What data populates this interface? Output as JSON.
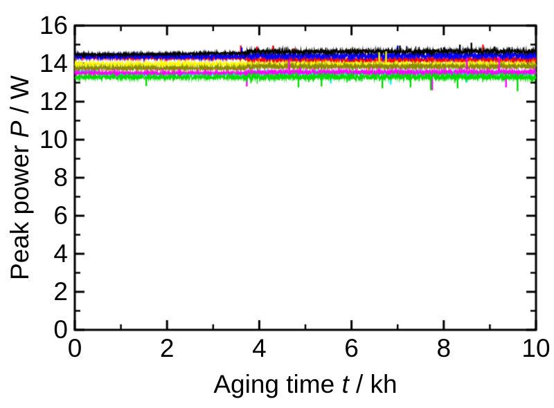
{
  "figure": {
    "background": "#ffffff",
    "frame_color": "#000000",
    "xlabel_parts": {
      "prefix": "Aging time ",
      "symbol": "t",
      "suffix": " / kh"
    },
    "ylabel_parts": {
      "prefix": "Peak power ",
      "symbol": "P",
      "suffix": " / W"
    }
  },
  "chart_data": {
    "type": "line",
    "title": "",
    "xlabel": "Aging time t / kh",
    "ylabel": "Peak power P / W",
    "xlim": [
      0,
      10
    ],
    "ylim": [
      0,
      16
    ],
    "x_major_ticks": [
      0,
      2,
      4,
      6,
      8,
      10
    ],
    "x_tick_labels": [
      "0",
      "2",
      "4",
      "6",
      "8",
      "10"
    ],
    "x_minor_ticks": [
      1,
      3,
      5,
      7,
      9
    ],
    "y_major_ticks": [
      0,
      2,
      4,
      6,
      8,
      10,
      12,
      14,
      16
    ],
    "y_tick_labels": [
      "0",
      "2",
      "4",
      "6",
      "8",
      "10",
      "12",
      "14",
      "16"
    ],
    "y_minor_ticks": [
      1,
      3,
      5,
      7,
      9,
      11,
      13,
      15
    ],
    "grid": false,
    "legend": "none",
    "ticks": "inside-all-four-sides",
    "noise_step_t": 3.7,
    "series": [
      {
        "name": "red",
        "color": "#FF0000",
        "base": [
          [
            0,
            14.35
          ],
          [
            3.7,
            14.3
          ],
          [
            3.75,
            14.2
          ],
          [
            10,
            14.2
          ]
        ],
        "amp_before": 0.08,
        "amp_after": 0.14,
        "tail": {
          "prob": 0.03,
          "dir": 1,
          "mult": 1.8
        },
        "spikes": [
          [
            3.6,
            14.95
          ],
          [
            3.95,
            14.9
          ],
          [
            4.3,
            14.95
          ],
          [
            4.75,
            14.8
          ],
          [
            6.3,
            14.75
          ],
          [
            8.85,
            15.0
          ],
          [
            9.3,
            14.7
          ]
        ]
      },
      {
        "name": "cyan",
        "color": "#00FFFF",
        "base": [
          [
            0,
            13.6
          ],
          [
            0.45,
            13.6
          ],
          [
            0.55,
            13.44
          ],
          [
            3.7,
            13.44
          ],
          [
            3.75,
            13.5
          ],
          [
            10,
            13.5
          ]
        ],
        "amp_before": 0.04,
        "amp_after": 0.09,
        "tail": {
          "prob": 0.02,
          "dir": -1,
          "mult": 1.6
        },
        "spikes": [
          [
            5.55,
            12.95
          ],
          [
            6.85,
            12.9
          ],
          [
            8.5,
            13.0
          ]
        ]
      },
      {
        "name": "blue",
        "color": "#0000FF",
        "base": [
          [
            0,
            14.38
          ],
          [
            3.7,
            14.38
          ],
          [
            3.75,
            14.4
          ],
          [
            10,
            14.42
          ]
        ],
        "amp_before": 0.11,
        "amp_after": 0.16,
        "tail": {
          "prob": 0.02,
          "dir": 1,
          "mult": 1.6
        },
        "spikes": [
          [
            3.62,
            14.85
          ],
          [
            7.0,
            14.95
          ]
        ]
      },
      {
        "name": "black",
        "color": "#000000",
        "base": [
          [
            0,
            14.47
          ],
          [
            1.5,
            14.49
          ],
          [
            3,
            14.54
          ],
          [
            3.7,
            14.56
          ],
          [
            3.75,
            14.62
          ],
          [
            10,
            14.65
          ]
        ],
        "amp_before": 0.06,
        "amp_after": 0.11,
        "tail": {
          "prob": 0.04,
          "dir": 1,
          "mult": 2.0
        },
        "spikes": [
          [
            7.05,
            14.95
          ],
          [
            8.0,
            14.85
          ],
          [
            8.35,
            15.0
          ],
          [
            8.6,
            15.1
          ],
          [
            9.1,
            14.9
          ]
        ]
      },
      {
        "name": "yellow",
        "color": "#FFFF00",
        "base": [
          [
            0,
            13.97
          ],
          [
            3.7,
            13.96
          ],
          [
            3.75,
            13.95
          ],
          [
            10,
            13.95
          ]
        ],
        "amp_before": 0.09,
        "amp_after": 0.1,
        "tail": {
          "prob": 0.015,
          "dir": 0,
          "mult": 1.8
        },
        "spikes": [
          [
            6.35,
            13.15
          ],
          [
            6.6,
            14.6
          ],
          [
            6.75,
            14.65
          ],
          [
            9.97,
            13.8
          ]
        ]
      },
      {
        "name": "dark-yellow",
        "color": "#8B8B00",
        "base": [
          [
            0,
            13.76
          ],
          [
            3.7,
            13.76
          ],
          [
            3.75,
            13.85
          ],
          [
            10,
            13.85
          ]
        ],
        "amp_before": 0.1,
        "amp_after": 0.12,
        "tail": {
          "prob": 0.015,
          "dir": 0,
          "mult": 1.5
        },
        "spikes": []
      },
      {
        "name": "magenta",
        "color": "#FF00FF",
        "base": [
          [
            0,
            13.5
          ],
          [
            3.7,
            13.5
          ],
          [
            3.75,
            13.55
          ],
          [
            10,
            13.55
          ]
        ],
        "amp_before": 0.07,
        "amp_after": 0.11,
        "tail": {
          "prob": 0.03,
          "dir": -1,
          "mult": 1.8
        },
        "spikes": [
          [
            3.73,
            12.8
          ],
          [
            4.65,
            14.2
          ],
          [
            7.75,
            12.6
          ],
          [
            8.5,
            14.3
          ],
          [
            9.2,
            14.35
          ],
          [
            9.35,
            12.75
          ]
        ]
      },
      {
        "name": "green",
        "color": "#00DC00",
        "base": [
          [
            0,
            13.28
          ],
          [
            3.7,
            13.28
          ],
          [
            3.75,
            13.3
          ],
          [
            10,
            13.3
          ]
        ],
        "amp_before": 0.09,
        "amp_after": 0.14,
        "tail": {
          "prob": 0.06,
          "dir": -1,
          "mult": 1.9
        },
        "spikes": [
          [
            1.55,
            12.82
          ],
          [
            4.85,
            12.75
          ],
          [
            5.35,
            12.8
          ],
          [
            6.67,
            12.7
          ],
          [
            7.28,
            12.75
          ],
          [
            7.72,
            12.6
          ],
          [
            8.3,
            12.7
          ],
          [
            9.6,
            12.55
          ]
        ]
      }
    ]
  }
}
